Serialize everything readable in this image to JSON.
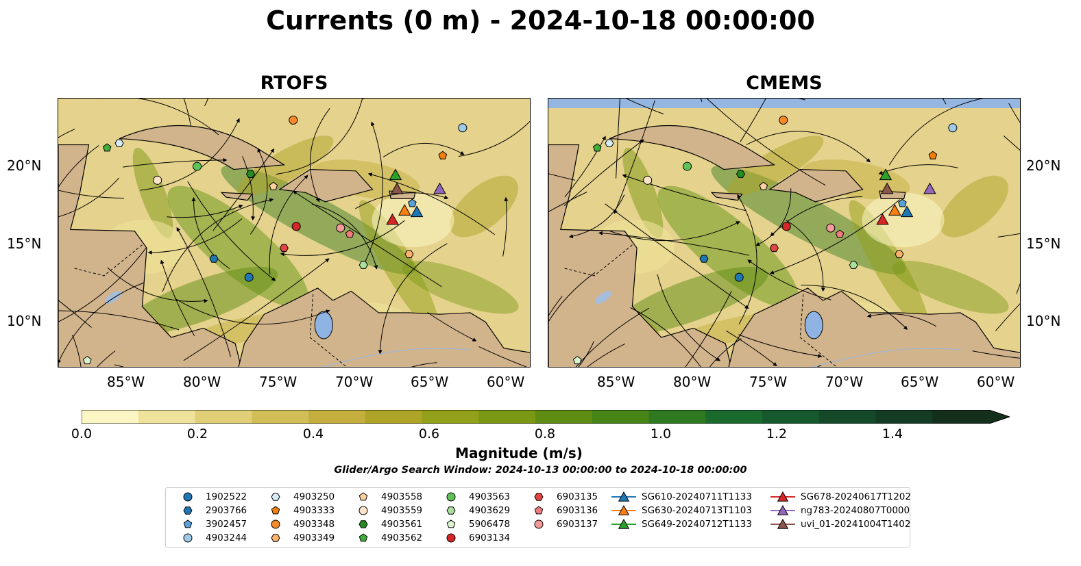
{
  "title": "Currents (0 m) - 2024-10-18 00:00:00",
  "panels": [
    {
      "title": "RTOFS"
    },
    {
      "title": "CMEMS"
    }
  ],
  "axes": {
    "lat_labels": [
      "20°N",
      "15°N",
      "10°N"
    ],
    "lon_labels": [
      "85°W",
      "80°W",
      "75°W",
      "70°W",
      "65°W",
      "60°W"
    ]
  },
  "colorbar": {
    "label": "Magnitude (m/s)",
    "ticks": [
      "0.0",
      "0.2",
      "0.4",
      "0.6",
      "0.8",
      "1.0",
      "1.2",
      "1.4"
    ],
    "range": [
      0,
      1.5
    ],
    "extend": "max",
    "colors": [
      "#fcf6c4",
      "#efe29a",
      "#e1cf77",
      "#d2be57",
      "#c4ae3d",
      "#aea428",
      "#93a01a",
      "#7b9814",
      "#5f8c13",
      "#468516",
      "#2f7a20",
      "#1b6a2d",
      "#15592c",
      "#144a29",
      "#143b23",
      "#142f1c"
    ]
  },
  "search_window": "Glider/Argo Search Window: 2024-10-13 00:00:00 to 2024-10-18 00:00:00",
  "legend": [
    {
      "label": "1902522",
      "marker": "circle",
      "color": "#1f77b4"
    },
    {
      "label": "2903766",
      "marker": "hexagon",
      "color": "#1f77b4"
    },
    {
      "label": "3902457",
      "marker": "pentagon",
      "color": "#5aa0d8"
    },
    {
      "label": "4903244",
      "marker": "circle",
      "color": "#9ecae9"
    },
    {
      "label": "4903250",
      "marker": "hexagon",
      "color": "#d6ebf8"
    },
    {
      "label": "4903333",
      "marker": "pentagon",
      "color": "#f07f0e"
    },
    {
      "label": "4903348",
      "marker": "circle",
      "color": "#f58a2a"
    },
    {
      "label": "4903349",
      "marker": "hexagon",
      "color": "#fdb36b"
    },
    {
      "label": "4903558",
      "marker": "pentagon",
      "color": "#fdd0a0"
    },
    {
      "label": "4903559",
      "marker": "circle",
      "color": "#fde3c8"
    },
    {
      "label": "4903561",
      "marker": "hexagon",
      "color": "#238b21"
    },
    {
      "label": "4903562",
      "marker": "pentagon",
      "color": "#3fae3a"
    },
    {
      "label": "4903563",
      "marker": "circle",
      "color": "#5fc35a"
    },
    {
      "label": "4903629",
      "marker": "hexagon",
      "color": "#a8e09c"
    },
    {
      "label": "5906478",
      "marker": "pentagon",
      "color": "#d9f5d0"
    },
    {
      "label": "6903134",
      "marker": "circle",
      "color": "#d62728"
    },
    {
      "label": "6903135",
      "marker": "hexagon",
      "color": "#e34444"
    },
    {
      "label": "6903136",
      "marker": "pentagon",
      "color": "#f47b7b"
    },
    {
      "label": "6903137",
      "marker": "circle",
      "color": "#f59a9a"
    },
    {
      "label": "SG610-20240711T1133",
      "marker": "triangle",
      "color": "#1f77b4"
    },
    {
      "label": "SG630-20240713T1103",
      "marker": "triangle",
      "color": "#ff7f0e"
    },
    {
      "label": "SG649-20240712T1133",
      "marker": "triangle",
      "color": "#2ca02c"
    },
    {
      "label": "SG678-20240617T1202",
      "marker": "triangle",
      "color": "#d62728"
    },
    {
      "label": "ng783-20240807T0000",
      "marker": "triangle",
      "color": "#9467bd"
    },
    {
      "label": "uvi_01-20241004T1402",
      "marker": "triangle",
      "color": "#8c564b"
    }
  ],
  "map_extent": {
    "lon": [
      -89,
      -58
    ],
    "lat": [
      7,
      24.5
    ]
  },
  "stations": {
    "rtofs": [
      {
        "id": "1902522",
        "lon": -76.5,
        "lat": 12.9
      },
      {
        "id": "2903766",
        "lon": -78.8,
        "lat": 14.1
      },
      {
        "id": "3902457",
        "lon": -65.8,
        "lat": 17.7
      },
      {
        "id": "4903244",
        "lon": -62.5,
        "lat": 22.6
      },
      {
        "id": "4903250",
        "lon": -85.0,
        "lat": 21.6
      },
      {
        "id": "4903333",
        "lon": -63.8,
        "lat": 20.8
      },
      {
        "id": "4903348",
        "lon": -73.6,
        "lat": 23.1
      },
      {
        "id": "4903349",
        "lon": -66.0,
        "lat": 14.4
      },
      {
        "id": "4903558",
        "lon": -74.9,
        "lat": 18.8
      },
      {
        "id": "4903559",
        "lon": -82.5,
        "lat": 19.2
      },
      {
        "id": "4903561",
        "lon": -76.4,
        "lat": 19.6
      },
      {
        "id": "4903562",
        "lon": -85.8,
        "lat": 21.3
      },
      {
        "id": "4903563",
        "lon": -79.9,
        "lat": 20.1
      },
      {
        "id": "4903629",
        "lon": -69.0,
        "lat": 13.7
      },
      {
        "id": "5906478",
        "lon": -87.1,
        "lat": 7.5
      },
      {
        "id": "6903134",
        "lon": -73.4,
        "lat": 16.2
      },
      {
        "id": "6903135",
        "lon": -74.2,
        "lat": 14.8
      },
      {
        "id": "6903136",
        "lon": -69.9,
        "lat": 15.7
      },
      {
        "id": "6903137",
        "lon": -70.5,
        "lat": 16.1
      },
      {
        "id": "SG610-20240711T1133",
        "lon": -65.5,
        "lat": 17.1
      },
      {
        "id": "SG630-20240713T1103",
        "lon": -66.3,
        "lat": 17.2
      },
      {
        "id": "SG649-20240712T1133",
        "lon": -66.9,
        "lat": 19.5
      },
      {
        "id": "SG678-20240617T1202",
        "lon": -67.1,
        "lat": 16.6
      },
      {
        "id": "ng783-20240807T0000",
        "lon": -64.0,
        "lat": 18.6
      },
      {
        "id": "uvi_01-20241004T1402",
        "lon": -66.8,
        "lat": 18.6
      }
    ],
    "cmems": [
      {
        "id": "1902522",
        "lon": -76.5,
        "lat": 12.9
      },
      {
        "id": "2903766",
        "lon": -78.8,
        "lat": 14.1
      },
      {
        "id": "3902457",
        "lon": -65.8,
        "lat": 17.7
      },
      {
        "id": "4903244",
        "lon": -62.5,
        "lat": 22.6
      },
      {
        "id": "4903250",
        "lon": -85.0,
        "lat": 21.6
      },
      {
        "id": "4903333",
        "lon": -63.8,
        "lat": 20.8
      },
      {
        "id": "4903348",
        "lon": -73.6,
        "lat": 23.1
      },
      {
        "id": "4903349",
        "lon": -66.0,
        "lat": 14.4
      },
      {
        "id": "4903558",
        "lon": -74.9,
        "lat": 18.8
      },
      {
        "id": "4903559",
        "lon": -82.5,
        "lat": 19.2
      },
      {
        "id": "4903561",
        "lon": -76.4,
        "lat": 19.6
      },
      {
        "id": "4903562",
        "lon": -85.8,
        "lat": 21.3
      },
      {
        "id": "4903563",
        "lon": -79.9,
        "lat": 20.1
      },
      {
        "id": "4903629",
        "lon": -69.0,
        "lat": 13.7
      },
      {
        "id": "5906478",
        "lon": -87.1,
        "lat": 7.5
      },
      {
        "id": "6903134",
        "lon": -73.4,
        "lat": 16.2
      },
      {
        "id": "6903135",
        "lon": -74.2,
        "lat": 14.8
      },
      {
        "id": "6903136",
        "lon": -69.9,
        "lat": 15.7
      },
      {
        "id": "6903137",
        "lon": -70.5,
        "lat": 16.1
      },
      {
        "id": "SG610-20240711T1133",
        "lon": -65.5,
        "lat": 17.1
      },
      {
        "id": "SG630-20240713T1103",
        "lon": -66.3,
        "lat": 17.2
      },
      {
        "id": "SG649-20240712T1133",
        "lon": -66.9,
        "lat": 19.5
      },
      {
        "id": "SG678-20240617T1202",
        "lon": -67.1,
        "lat": 16.6
      },
      {
        "id": "ng783-20240807T0000",
        "lon": -64.0,
        "lat": 18.6
      },
      {
        "id": "uvi_01-20241004T1402",
        "lon": -66.8,
        "lat": 18.6
      }
    ]
  }
}
